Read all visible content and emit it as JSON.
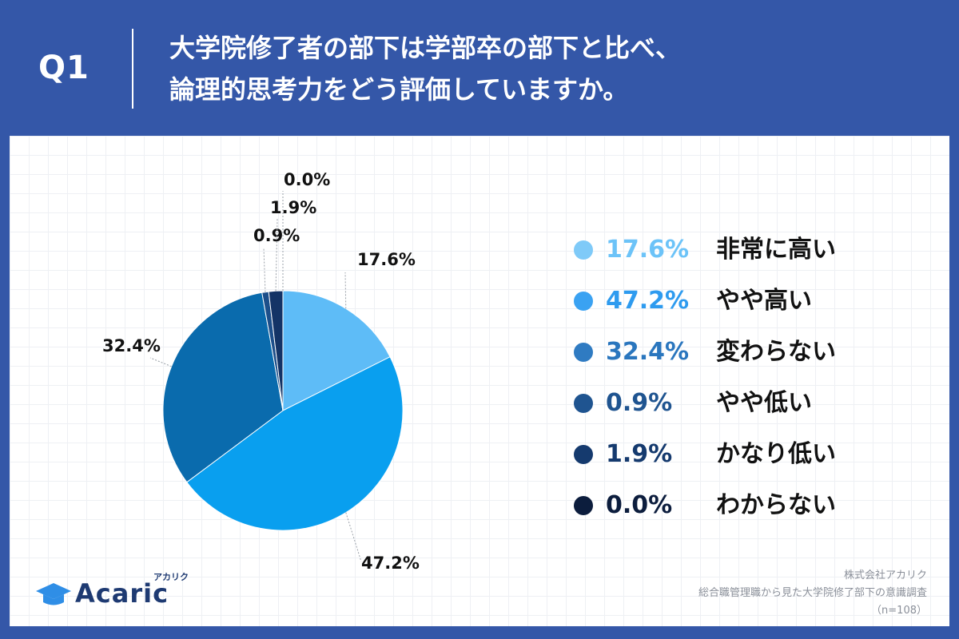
{
  "header": {
    "q_label": "Q1",
    "question_line1": "大学院修了者の部下は学部卒の部下と比べ、",
    "question_line2": "論理的思考力をどう評価していますか。"
  },
  "chart_data": {
    "type": "pie",
    "title": "大学院修了者の部下は学部卒の部下と比べ、論理的思考力をどう評価していますか。",
    "slices": [
      {
        "label": "非常に高い",
        "value": 17.6,
        "display": "17.6%",
        "color": "#5ebcf7"
      },
      {
        "label": "やや高い",
        "value": 47.2,
        "display": "47.2%",
        "color": "#099fef"
      },
      {
        "label": "変わらない",
        "value": 32.4,
        "display": "32.4%",
        "color": "#0a6bad"
      },
      {
        "label": "やや低い",
        "value": 0.9,
        "display": "0.9%",
        "color": "#1d4f8a"
      },
      {
        "label": "かなり低い",
        "value": 1.9,
        "display": "1.9%",
        "color": "#143466"
      },
      {
        "label": "わからない",
        "value": 0.0,
        "display": "0.0%",
        "color": "#0c1d3d"
      }
    ],
    "legend_position": "right"
  },
  "legend": {
    "items": [
      {
        "value": "17.6%",
        "label": "非常に高い",
        "color": "#7fcaf8",
        "text_color": "#6cc3f8"
      },
      {
        "value": "47.2%",
        "label": "やや高い",
        "color": "#3aa2f2",
        "text_color": "#2e9bef"
      },
      {
        "value": "32.4%",
        "label": "変わらない",
        "color": "#2f7bc2",
        "text_color": "#2a76be"
      },
      {
        "value": "0.9%",
        "label": "やや低い",
        "color": "#1f5490",
        "text_color": "#1f5490"
      },
      {
        "value": "1.9%",
        "label": "かなり低い",
        "color": "#153a6e",
        "text_color": "#153a6e"
      },
      {
        "value": "0.0%",
        "label": "わからない",
        "color": "#0c1d3d",
        "text_color": "#0c1d3d"
      }
    ]
  },
  "logo": {
    "name": "Acaric",
    "kana": "アカリク"
  },
  "source": {
    "company": "株式会社アカリク",
    "survey": "総合職管理職から見た大学院修了部下の意識調査",
    "sample": "（n=108）"
  },
  "colors": {
    "background": "#3457a8",
    "card": "#ffffff",
    "label_text": "#111111"
  }
}
